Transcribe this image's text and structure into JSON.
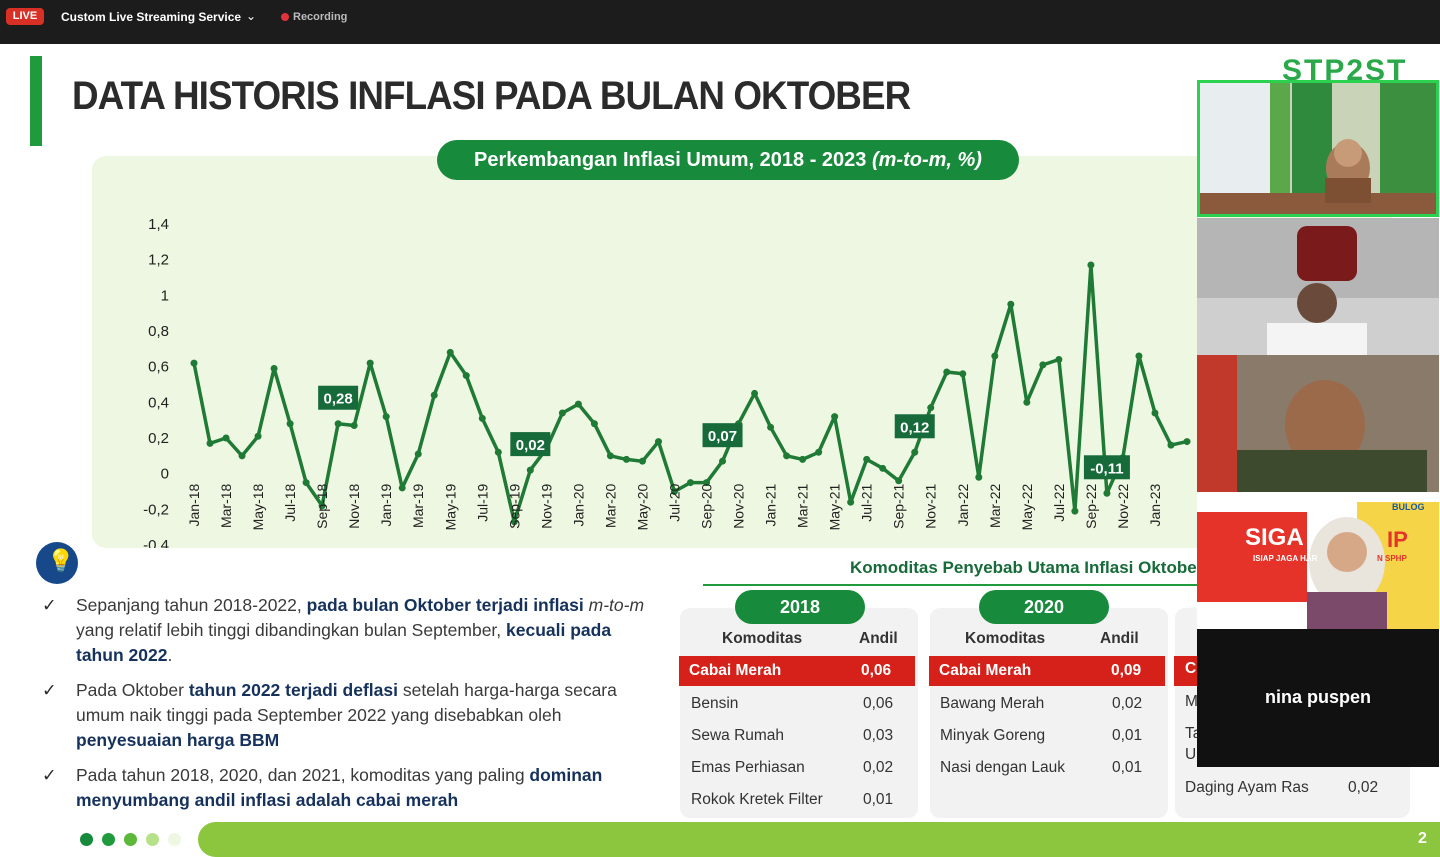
{
  "topbar": {
    "live": "LIVE",
    "service": "Custom Live Streaming Service",
    "chevron": "⌄",
    "recording": "Recording"
  },
  "slide": {
    "title": "DATA HISTORIS INFLASI PADA BULAN OKTOBER",
    "logo": "STP2ST",
    "chart_title_main": "Perkembangan Inflasi Umum, 2018 - 2023 ",
    "chart_title_italic": "(m-to-m, %)",
    "bullet_glyph": "✓",
    "bullets": [
      {
        "parts": [
          {
            "t": "Sepanjang tahun 2018-2022, ",
            "s": "n"
          },
          {
            "t": "pada bulan Oktober terjadi inflasi ",
            "s": "b"
          },
          {
            "t": "m-to-m",
            "s": "i"
          },
          {
            "t": " yang relatif lebih tinggi dibandingkan bulan September, ",
            "s": "n"
          },
          {
            "t": "kecuali pada tahun 2022",
            "s": "b"
          },
          {
            "t": ".",
            "s": "n"
          }
        ]
      },
      {
        "parts": [
          {
            "t": "Pada Oktober ",
            "s": "n"
          },
          {
            "t": "tahun 2022 terjadi deflasi",
            "s": "b"
          },
          {
            "t": " setelah harga-harga secara umum naik tinggi pada September 2022 yang disebabkan oleh ",
            "s": "n"
          },
          {
            "t": "penyesuaian harga BBM",
            "s": "b"
          }
        ]
      },
      {
        "parts": [
          {
            "t": "Pada tahun 2018, 2020, dan 2021, komoditas yang paling ",
            "s": "n"
          },
          {
            "t": "dominan menyumbang andil inflasi adalah cabai merah",
            "s": "b"
          }
        ]
      }
    ],
    "komoditas_title": "Komoditas Penyebab Utama Inflasi Oktober",
    "tables": [
      {
        "year": "2018",
        "col1": "Komoditas",
        "col2": "Andil",
        "rows": [
          {
            "name": "Cabai Merah",
            "val": "0,06"
          },
          {
            "name": "Bensin",
            "val": "0,06"
          },
          {
            "name": "Sewa Rumah",
            "val": "0,03"
          },
          {
            "name": "Emas Perhiasan",
            "val": "0,02"
          },
          {
            "name": "Rokok Kretek Filter",
            "val": "0,01"
          }
        ]
      },
      {
        "year": "2020",
        "col1": "Komoditas",
        "col2": "Andil",
        "rows": [
          {
            "name": "Cabai Merah",
            "val": "0,09"
          },
          {
            "name": "Bawang Merah",
            "val": "0,02"
          },
          {
            "name": "Minyak Goreng",
            "val": "0,01"
          },
          {
            "name": "Nasi dengan Lauk",
            "val": "0,01"
          }
        ]
      },
      {
        "partial_letters": [
          "C",
          "M",
          "Ta",
          "U"
        ],
        "last_row": {
          "name": "Daging Ayam Ras",
          "val": "0,02"
        }
      }
    ],
    "page_number": "2"
  },
  "participants": [
    {
      "name": ""
    },
    {
      "name": ""
    },
    {
      "name": ""
    },
    {
      "name": "",
      "banner": "SIGA",
      "banner2": "IP",
      "sub": "ISIAP JAGA HAR",
      "sub2": "N SPHP",
      "logo": "BULOG"
    },
    {
      "name": "nina puspen"
    }
  ],
  "colors": {
    "accent_green": "#178a3c",
    "line_green": "#1e7a35",
    "highlight_red": "#d6201a",
    "footer_lime": "#8cc63f",
    "live_red": "#d93025"
  },
  "chart_data": {
    "type": "line",
    "title": "Perkembangan Inflasi Umum, 2018 - 2023 (m-to-m, %)",
    "ylim": [
      -0.4,
      1.4
    ],
    "yticks": [
      "1,4",
      "1,2",
      "1",
      "0,8",
      "0,6",
      "0,4",
      "0,2",
      "0",
      "-0,2",
      "-0,4"
    ],
    "xticks": [
      "Jan-18",
      "Mar-18",
      "May-18",
      "Jul-18",
      "Sep-18",
      "Nov-18",
      "Jan-19",
      "Mar-19",
      "May-19",
      "Jul-19",
      "Sep-19",
      "Nov-19",
      "Jan-20",
      "Mar-20",
      "May-20",
      "Jul-20",
      "Sep-20",
      "Nov-20",
      "Jan-21",
      "Mar-21",
      "May-21",
      "Jul-21",
      "Sep-21",
      "Nov-21",
      "Jan-22",
      "Mar-22",
      "May-22",
      "Jul-22",
      "Sep-22",
      "Nov-22",
      "Jan-23"
    ],
    "values": [
      0.62,
      0.17,
      0.2,
      0.1,
      0.21,
      0.59,
      0.28,
      -0.05,
      -0.18,
      0.28,
      0.27,
      0.62,
      0.32,
      -0.08,
      0.11,
      0.44,
      0.68,
      0.55,
      0.31,
      0.12,
      -0.27,
      0.02,
      0.14,
      0.34,
      0.39,
      0.28,
      0.1,
      0.08,
      0.07,
      0.18,
      -0.1,
      -0.05,
      -0.05,
      0.07,
      0.28,
      0.45,
      0.26,
      0.1,
      0.08,
      0.12,
      0.32,
      -0.16,
      0.08,
      0.03,
      -0.04,
      0.12,
      0.37,
      0.57,
      0.56,
      -0.02,
      0.66,
      0.95,
      0.4,
      0.61,
      0.64,
      -0.21,
      1.17,
      -0.11,
      0.09,
      0.66,
      0.34,
      0.16,
      0.18
    ],
    "callouts": [
      {
        "index": 9,
        "label": "0,28"
      },
      {
        "index": 21,
        "label": "0,02"
      },
      {
        "index": 33,
        "label": "0,07"
      },
      {
        "index": 45,
        "label": "0,12"
      },
      {
        "index": 57,
        "label": "-0,11"
      }
    ]
  }
}
